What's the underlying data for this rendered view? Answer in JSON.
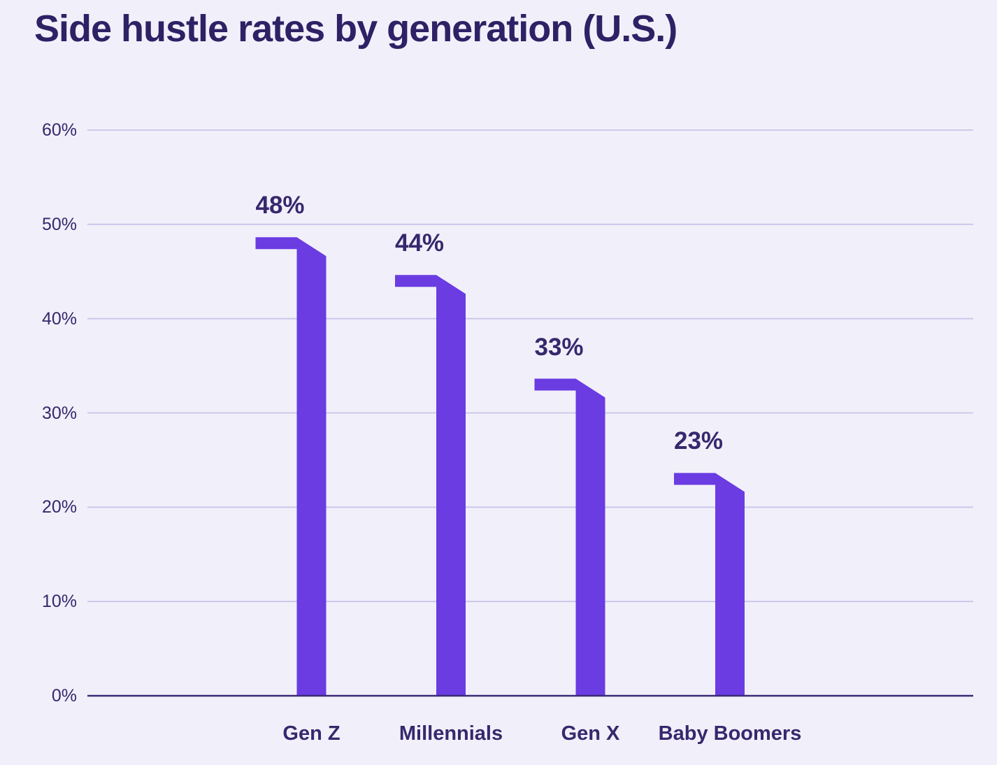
{
  "page": {
    "background": "#F1F0FA"
  },
  "chart_data": {
    "type": "bar",
    "title": "Side hustle rates by generation (U.S.)",
    "categories": [
      "Gen Z",
      "Millennials",
      "Gen X",
      "Baby Boomers"
    ],
    "values": [
      48,
      44,
      33,
      23
    ],
    "value_labels": [
      "48%",
      "44%",
      "33%",
      "23%"
    ],
    "xlabel": "",
    "ylabel": "",
    "ylim": [
      0,
      60
    ],
    "y_tick_values": [
      0,
      10,
      20,
      30,
      40,
      50,
      60
    ],
    "y_tick_labels": [
      "0%",
      "10%",
      "20%",
      "30%",
      "40%",
      "50%",
      "60%"
    ],
    "grid": "horizontal-only",
    "legend": "none",
    "bar_style": "flag-top: horizontal cap extends left of bar, diagonal bevel slopes down-right into bar top",
    "colors": {
      "background": "#F1F0FA",
      "bar": "#6A3CE2",
      "title_text": "#2F2165",
      "axis_text": "#37286D",
      "value_label_text": "#37286D",
      "grid_line": "#C8C4EB",
      "zero_axis_line": "#3B2B77"
    }
  }
}
